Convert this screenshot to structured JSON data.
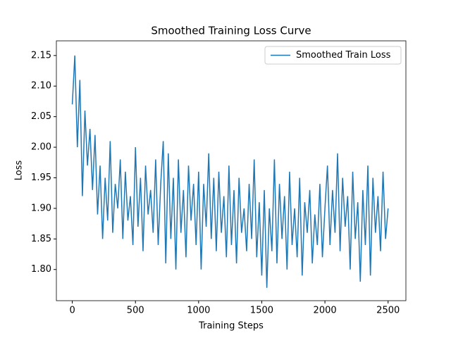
{
  "chart_data": {
    "type": "line",
    "title": "Smoothed Training Loss Curve",
    "x_label": "Training Steps",
    "y_label": "Loss",
    "legend": "upper right",
    "x": [
      0,
      20,
      40,
      60,
      80,
      100,
      120,
      140,
      160,
      180,
      200,
      220,
      240,
      260,
      280,
      300,
      320,
      340,
      360,
      380,
      400,
      420,
      440,
      460,
      480,
      500,
      520,
      540,
      560,
      580,
      600,
      620,
      640,
      660,
      680,
      700,
      720,
      740,
      760,
      780,
      800,
      820,
      840,
      860,
      880,
      900,
      920,
      940,
      960,
      980,
      1000,
      1020,
      1040,
      1060,
      1080,
      1100,
      1120,
      1140,
      1160,
      1180,
      1200,
      1220,
      1240,
      1260,
      1280,
      1300,
      1320,
      1340,
      1360,
      1380,
      1400,
      1420,
      1440,
      1460,
      1480,
      1500,
      1520,
      1540,
      1560,
      1580,
      1600,
      1620,
      1640,
      1660,
      1680,
      1700,
      1720,
      1740,
      1760,
      1780,
      1800,
      1820,
      1840,
      1860,
      1880,
      1900,
      1920,
      1940,
      1960,
      1980,
      2000,
      2020,
      2040,
      2060,
      2080,
      2100,
      2120,
      2140,
      2160,
      2180,
      2200,
      2220,
      2240,
      2260,
      2280,
      2300,
      2320,
      2340,
      2360,
      2380,
      2400,
      2420,
      2440,
      2460,
      2480,
      2500
    ],
    "series": [
      {
        "name": "Smoothed Train Loss",
        "color": "#1f77b4",
        "values": [
          2.07,
          2.15,
          2.0,
          2.11,
          1.92,
          2.06,
          1.97,
          2.03,
          1.93,
          2.02,
          1.89,
          1.97,
          1.85,
          1.95,
          1.88,
          2.01,
          1.86,
          1.94,
          1.9,
          1.98,
          1.85,
          1.96,
          1.88,
          1.92,
          1.84,
          2.0,
          1.87,
          1.95,
          1.83,
          1.97,
          1.89,
          1.93,
          1.86,
          1.98,
          1.84,
          1.94,
          2.01,
          1.81,
          1.99,
          1.85,
          1.95,
          1.8,
          1.98,
          1.86,
          1.93,
          1.82,
          1.97,
          1.88,
          1.94,
          1.84,
          1.96,
          1.8,
          1.94,
          1.87,
          1.99,
          1.85,
          1.95,
          1.83,
          1.96,
          1.86,
          1.92,
          1.82,
          1.97,
          1.84,
          1.93,
          1.81,
          1.95,
          1.86,
          1.9,
          1.83,
          1.94,
          1.85,
          1.98,
          1.82,
          1.91,
          1.79,
          1.93,
          1.77,
          1.9,
          1.83,
          1.98,
          1.81,
          1.94,
          1.85,
          1.92,
          1.8,
          1.96,
          1.84,
          1.9,
          1.82,
          1.95,
          1.79,
          1.91,
          1.86,
          1.93,
          1.81,
          1.89,
          1.84,
          1.94,
          1.82,
          1.9,
          1.97,
          1.84,
          1.93,
          1.86,
          1.99,
          1.83,
          1.95,
          1.87,
          1.92,
          1.8,
          1.96,
          1.85,
          1.91,
          1.78,
          1.93,
          1.84,
          1.97,
          1.79,
          1.95,
          1.86,
          1.92,
          1.83,
          1.96,
          1.85,
          1.9
        ]
      }
    ],
    "xlim": [
      -126,
      2641
    ],
    "xticks": [
      0,
      500,
      1000,
      1500,
      2000,
      2500
    ],
    "ylim": [
      1.749,
      2.174
    ],
    "yticks": [
      {
        "value": 1.8,
        "label": "1.80"
      },
      {
        "value": 1.85,
        "label": "1.85"
      },
      {
        "value": 1.9,
        "label": "1.90"
      },
      {
        "value": 1.95,
        "label": "1.95"
      },
      {
        "value": 2.0,
        "label": "2.00"
      },
      {
        "value": 2.05,
        "label": "2.05"
      },
      {
        "value": 2.1,
        "label": "2.10"
      },
      {
        "value": 2.15,
        "label": "2.15"
      }
    ]
  }
}
